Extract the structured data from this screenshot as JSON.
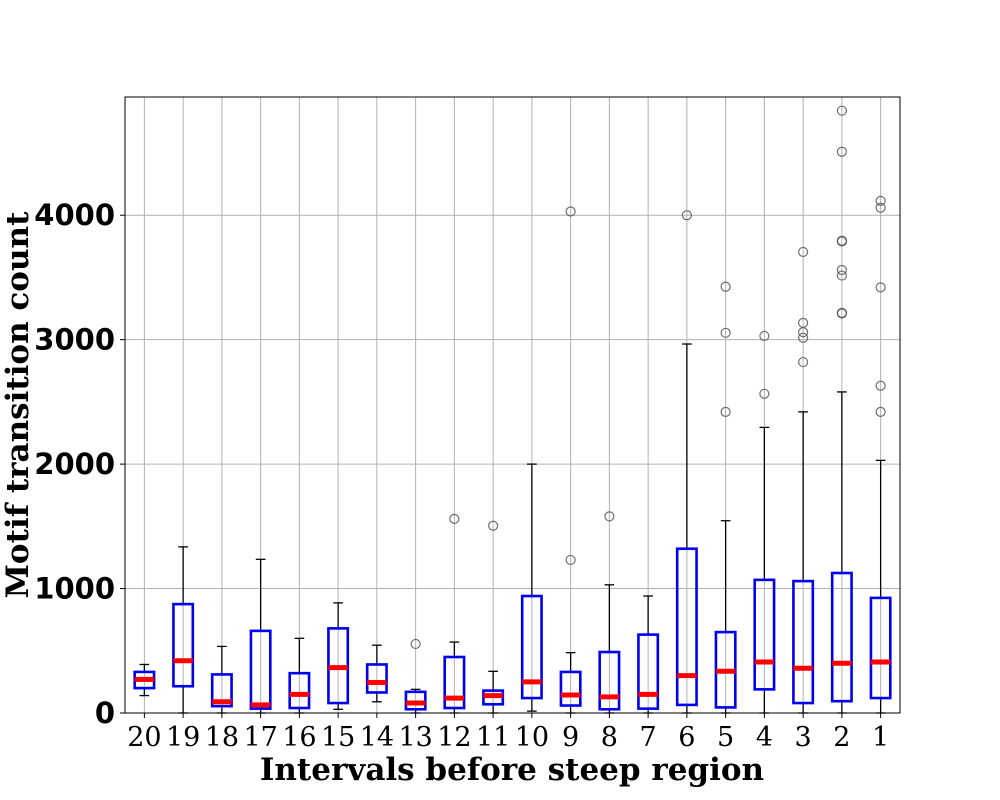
{
  "chart_data": {
    "type": "box",
    "title": "",
    "xlabel": "Intervals before steep region",
    "ylabel": "Motif transition count",
    "categories": [
      "20",
      "19",
      "18",
      "17",
      "16",
      "15",
      "14",
      "13",
      "12",
      "11",
      "10",
      "9",
      "8",
      "7",
      "6",
      "5",
      "4",
      "3",
      "2",
      "1"
    ],
    "ylim": [
      0,
      4950
    ],
    "yticks": [
      0,
      1000,
      2000,
      3000,
      4000
    ],
    "grid": true,
    "colors": {
      "box": "#0000ee",
      "median": "#ff0000",
      "whisker": "#000000",
      "outlier": "#555555"
    },
    "boxes": [
      {
        "label": "20",
        "whislo": 140,
        "q1": 200,
        "med": 270,
        "q3": 330,
        "whishi": 390,
        "fliers": []
      },
      {
        "label": "19",
        "whislo": 0,
        "q1": 215,
        "med": 420,
        "q3": 875,
        "whishi": 1335,
        "fliers": []
      },
      {
        "label": "18",
        "whislo": 0,
        "q1": 55,
        "med": 90,
        "q3": 310,
        "whishi": 535,
        "fliers": []
      },
      {
        "label": "17",
        "whislo": 0,
        "q1": 35,
        "med": 65,
        "q3": 660,
        "whishi": 1235,
        "fliers": []
      },
      {
        "label": "16",
        "whislo": 0,
        "q1": 40,
        "med": 150,
        "q3": 320,
        "whishi": 600,
        "fliers": []
      },
      {
        "label": "15",
        "whislo": 30,
        "q1": 80,
        "med": 365,
        "q3": 680,
        "whishi": 885,
        "fliers": []
      },
      {
        "label": "14",
        "whislo": 90,
        "q1": 165,
        "med": 245,
        "q3": 390,
        "whishi": 545,
        "fliers": []
      },
      {
        "label": "13",
        "whislo": 0,
        "q1": 30,
        "med": 80,
        "q3": 170,
        "whishi": 190,
        "fliers": [
          555
        ]
      },
      {
        "label": "12",
        "whislo": 0,
        "q1": 40,
        "med": 120,
        "q3": 450,
        "whishi": 570,
        "fliers": [
          1560
        ]
      },
      {
        "label": "11",
        "whislo": 0,
        "q1": 70,
        "med": 140,
        "q3": 180,
        "whishi": 335,
        "fliers": [
          1505
        ]
      },
      {
        "label": "10",
        "whislo": 15,
        "q1": 120,
        "med": 250,
        "q3": 940,
        "whishi": 2000,
        "fliers": []
      },
      {
        "label": "9",
        "whislo": 0,
        "q1": 60,
        "med": 145,
        "q3": 330,
        "whishi": 485,
        "fliers": [
          1230,
          4030
        ]
      },
      {
        "label": "8",
        "whislo": 0,
        "q1": 30,
        "med": 130,
        "q3": 490,
        "whishi": 1030,
        "fliers": [
          1580
        ]
      },
      {
        "label": "7",
        "whislo": 0,
        "q1": 35,
        "med": 150,
        "q3": 630,
        "whishi": 940,
        "fliers": []
      },
      {
        "label": "6",
        "whislo": 0,
        "q1": 65,
        "med": 300,
        "q3": 1320,
        "whishi": 2965,
        "fliers": [
          4000
        ]
      },
      {
        "label": "5",
        "whislo": 0,
        "q1": 45,
        "med": 335,
        "q3": 650,
        "whishi": 1545,
        "fliers": [
          2420,
          3055,
          3425
        ]
      },
      {
        "label": "4",
        "whislo": 0,
        "q1": 190,
        "med": 410,
        "q3": 1070,
        "whishi": 2295,
        "fliers": [
          2565,
          3030
        ]
      },
      {
        "label": "3",
        "whislo": 0,
        "q1": 80,
        "med": 360,
        "q3": 1060,
        "whishi": 2420,
        "fliers": [
          2820,
          3015,
          3060,
          3135,
          3705
        ]
      },
      {
        "label": "2",
        "whislo": 0,
        "q1": 95,
        "med": 400,
        "q3": 1125,
        "whishi": 2580,
        "fliers": [
          3210,
          3215,
          3515,
          3560,
          3790,
          3795,
          4510,
          4840
        ]
      },
      {
        "label": "1",
        "whislo": 0,
        "q1": 120,
        "med": 410,
        "q3": 925,
        "whishi": 2030,
        "fliers": [
          2420,
          2630,
          3420,
          4060,
          4115
        ]
      }
    ]
  }
}
